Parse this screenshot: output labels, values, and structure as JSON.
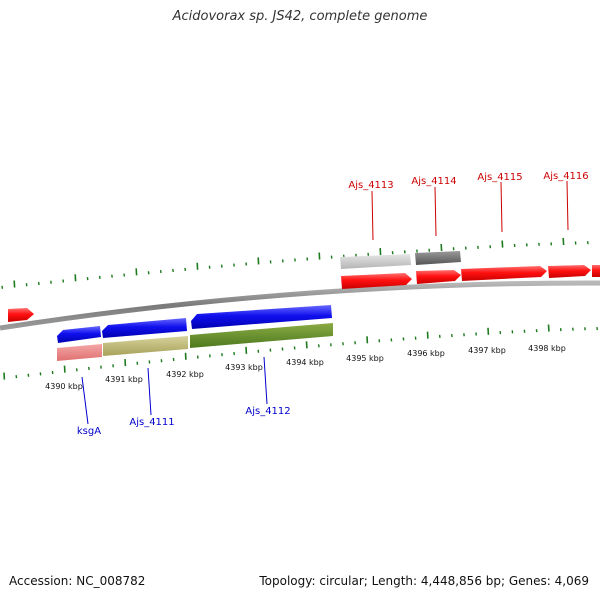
{
  "title": "Acidovorax sp. JS42, complete genome",
  "footer": {
    "accession": "Accession: NC_008782",
    "summary": "Topology: circular; Length: 4,448,856 bp; Genes: 4,069"
  },
  "colors": {
    "backbone": "#808080",
    "tick": "#1e7a1e",
    "forward_label": "#cc0000",
    "reverse_label": "#0000cc"
  },
  "scale": {
    "unit": "kbp",
    "labels": [
      "4390 kbp",
      "4391 kbp",
      "4392 kbp",
      "4393 kbp",
      "4394 kbp",
      "4395 kbp",
      "4396 kbp",
      "4397 kbp",
      "4398 kbp"
    ]
  },
  "genes": {
    "forward_labels": [
      "Ajs_4113",
      "Ajs_4114",
      "Ajs_4115",
      "Ajs_4116"
    ],
    "reverse_labels": [
      "ksgA",
      "Ajs_4111",
      "Ajs_4112"
    ]
  }
}
